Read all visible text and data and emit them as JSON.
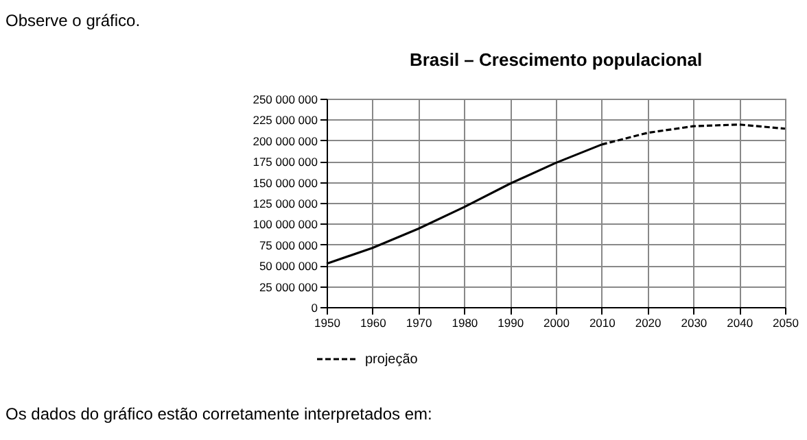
{
  "chart_data": {
    "type": "line",
    "title": "Brasil – Crescimento populacional",
    "annotations": [
      "Observe o gráfico.",
      "Os dados do gráfico estão corretamente interpretados em:"
    ],
    "xlim": [
      1950,
      2050
    ],
    "xticks": [
      1950,
      1960,
      1970,
      1980,
      1990,
      2000,
      2010,
      2020,
      2030,
      2040,
      2050
    ],
    "ylim": [
      0,
      250000000
    ],
    "yticks": [
      {
        "value": 0,
        "label": "0"
      },
      {
        "value": 25000000,
        "label": "25 000 000"
      },
      {
        "value": 50000000,
        "label": "50 000 000"
      },
      {
        "value": 75000000,
        "label": "75 000 000"
      },
      {
        "value": 100000000,
        "label": "100 000 000"
      },
      {
        "value": 125000000,
        "label": "125 000 000"
      },
      {
        "value": 150000000,
        "label": "150 000 000"
      },
      {
        "value": 175000000,
        "label": "175 000 000"
      },
      {
        "value": 200000000,
        "label": "200 000 000"
      },
      {
        "value": 225000000,
        "label": "225 000 000"
      },
      {
        "value": 250000000,
        "label": "250 000 000"
      }
    ],
    "grid": true,
    "legend": "bottom left",
    "series": [
      {
        "color": "#000000",
        "line_style": "solid",
        "x": [
          1950,
          1960,
          1970,
          1980,
          1990,
          2000,
          2010
        ],
        "values": [
          52000000,
          71000000,
          94000000,
          120000000,
          148000000,
          173000000,
          195000000
        ]
      },
      {
        "name": "projeção",
        "color": "#000000",
        "line_style": "dashed",
        "x": [
          2010,
          2020,
          2030,
          2040,
          2050
        ],
        "values": [
          195000000,
          209000000,
          217000000,
          219000000,
          214000000
        ]
      }
    ]
  }
}
